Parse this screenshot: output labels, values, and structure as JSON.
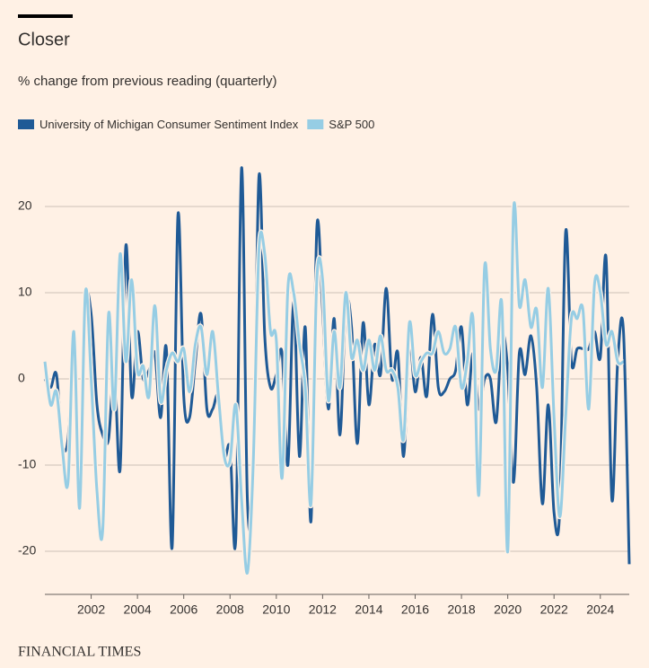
{
  "chart_data": {
    "type": "line",
    "title": "Closer",
    "subtitle": "% change from previous reading (quarterly)",
    "source": "FINANCIAL TIMES",
    "x": [
      2000,
      2000.25,
      2000.5,
      2000.75,
      2001,
      2001.25,
      2001.5,
      2001.75,
      2002,
      2002.25,
      2002.5,
      2002.75,
      2003,
      2003.25,
      2003.5,
      2003.75,
      2004,
      2004.25,
      2004.5,
      2004.75,
      2005,
      2005.25,
      2005.5,
      2005.75,
      2006,
      2006.25,
      2006.5,
      2006.75,
      2007,
      2007.25,
      2007.5,
      2007.75,
      2008,
      2008.25,
      2008.5,
      2008.75,
      2009,
      2009.25,
      2009.5,
      2009.75,
      2010,
      2010.25,
      2010.5,
      2010.75,
      2011,
      2011.25,
      2011.5,
      2011.75,
      2012,
      2012.25,
      2012.5,
      2012.75,
      2013,
      2013.25,
      2013.5,
      2013.75,
      2014,
      2014.25,
      2014.5,
      2014.75,
      2015,
      2015.25,
      2015.5,
      2015.75,
      2016,
      2016.25,
      2016.5,
      2016.75,
      2017,
      2017.25,
      2017.5,
      2017.75,
      2018,
      2018.25,
      2018.5,
      2018.75,
      2019,
      2019.25,
      2019.5,
      2019.75,
      2020,
      2020.25,
      2020.5,
      2020.75,
      2021,
      2021.25,
      2021.5,
      2021.75,
      2022,
      2022.25,
      2022.5,
      2022.75,
      2023,
      2023.25,
      2023.5,
      2023.75,
      2024,
      2024.25,
      2024.5,
      2024.75,
      2025,
      2025.25
    ],
    "series": [
      {
        "name": "University of Michigan Consumer Sentiment Index",
        "color": "#1f5a96",
        "values": [
          0,
          -1,
          0.5,
          -7.5,
          -7,
          3,
          -11,
          8.5,
          7.5,
          -3,
          -6.5,
          -7,
          1,
          -10.5,
          15.5,
          -2,
          5.5,
          0,
          1,
          3,
          -4.5,
          3.5,
          -19.5,
          19,
          -2,
          -4.5,
          2,
          7.5,
          -3.5,
          -3.5,
          -2,
          -9,
          -8,
          -18.5,
          24.5,
          -14,
          -12,
          23.5,
          5,
          -1,
          0.5,
          3,
          -10,
          9,
          -9,
          6,
          -16.5,
          17.5,
          8,
          -3.5,
          7,
          -6.5,
          8.5,
          6,
          -7.5,
          6.5,
          -3,
          4,
          0.5,
          10.5,
          0,
          3,
          -9,
          4,
          -1.5,
          2.5,
          -2,
          7.5,
          -1,
          -1.5,
          0,
          1,
          6,
          -3,
          3,
          -3.5,
          0,
          0,
          -5,
          5,
          1,
          -12,
          3,
          0.5,
          5,
          -1,
          -14.5,
          -3,
          -15.5,
          -15,
          17,
          2,
          3.5,
          3.5,
          3.5,
          5.5,
          2.5,
          14,
          -14,
          2,
          5.5,
          -21.5
        ]
      },
      {
        "name": "S&P 500",
        "color": "#96cde4",
        "values": [
          2,
          -3,
          -1.5,
          -8,
          -12,
          5.5,
          -15,
          10,
          0,
          -13,
          -17.5,
          7.5,
          -3.5,
          14.5,
          2,
          11.5,
          1,
          1.5,
          -2,
          8.5,
          -2.5,
          1,
          3,
          2,
          3.5,
          -1.5,
          4,
          6,
          0.5,
          5.5,
          -2,
          -9,
          -9.5,
          -3,
          -14,
          -22.5,
          -10,
          15,
          14.5,
          5.5,
          4.5,
          -11.5,
          10.5,
          10,
          4,
          -1,
          -14.5,
          11.5,
          11.5,
          -2.5,
          5.5,
          -1,
          10,
          2.5,
          4.5,
          1,
          4.5,
          1,
          5,
          1,
          1,
          -1,
          -7,
          6.5,
          0.5,
          2,
          3,
          3,
          5.5,
          3,
          3.5,
          6,
          -1,
          2,
          7,
          -13.5,
          13,
          3.5,
          1,
          8.5,
          -20,
          19.5,
          8.5,
          11.5,
          6,
          8,
          -1,
          10.5,
          -4.5,
          -16,
          -4.5,
          7,
          7,
          8,
          -3.5,
          11,
          10,
          4,
          5.5,
          2,
          2,
          null
        ]
      }
    ],
    "xlim": [
      2000,
      2025.25
    ],
    "xticks": [
      2002,
      2004,
      2006,
      2008,
      2010,
      2012,
      2014,
      2016,
      2018,
      2020,
      2022,
      2024
    ],
    "ylim": [
      -25,
      25
    ],
    "yticks": [
      -20,
      -10,
      0,
      10,
      20
    ],
    "grid": true
  }
}
